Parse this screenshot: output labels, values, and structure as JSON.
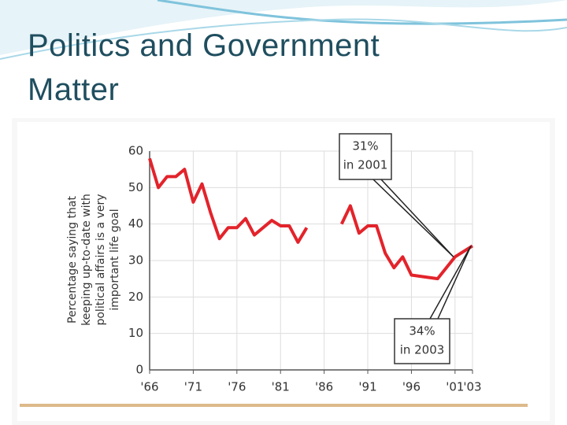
{
  "slide": {
    "title": "Politics and Government Matter"
  },
  "chart_data": {
    "type": "line",
    "ylabel": [
      "Percentage saying that",
      "keeping up-to-date with",
      "political affairs is a very",
      "important life goal"
    ],
    "x": [
      1966,
      1967,
      1968,
      1969,
      1970,
      1971,
      1972,
      1973,
      1974,
      1975,
      1976,
      1977,
      1978,
      1979,
      1980,
      1981,
      1982,
      1983,
      1984,
      1986,
      1988,
      1989,
      1990,
      1991,
      1992,
      1993,
      1994,
      1995,
      1996,
      1999,
      2001,
      2003
    ],
    "values": [
      58,
      50,
      53,
      53,
      55,
      46,
      51,
      43,
      36,
      39,
      39,
      41.5,
      37,
      39,
      41,
      39.5,
      39.5,
      35,
      39,
      null,
      40,
      45,
      37.5,
      39.5,
      39.5,
      32,
      28,
      31,
      26,
      25,
      31,
      34
    ],
    "color": "#e3232b",
    "xlim": [
      1966,
      2003
    ],
    "xticks": [
      {
        "value": 1966,
        "label": "'66"
      },
      {
        "value": 1971,
        "label": "'71"
      },
      {
        "value": 1976,
        "label": "'76"
      },
      {
        "value": 1981,
        "label": "'81"
      },
      {
        "value": 1986,
        "label": "'86"
      },
      {
        "value": 1991,
        "label": "'91"
      },
      {
        "value": 1996,
        "label": "'96"
      },
      {
        "value": 2001,
        "label": "'01"
      },
      {
        "value": 2003,
        "label": "'03"
      }
    ],
    "ylim": [
      0,
      60
    ],
    "yticks": [
      0,
      10,
      20,
      30,
      40,
      50,
      60
    ],
    "grid": true,
    "annotations": [
      {
        "lines": [
          "31%",
          "in 2001"
        ]
      },
      {
        "lines": [
          "34%",
          "in 2003"
        ]
      }
    ]
  }
}
